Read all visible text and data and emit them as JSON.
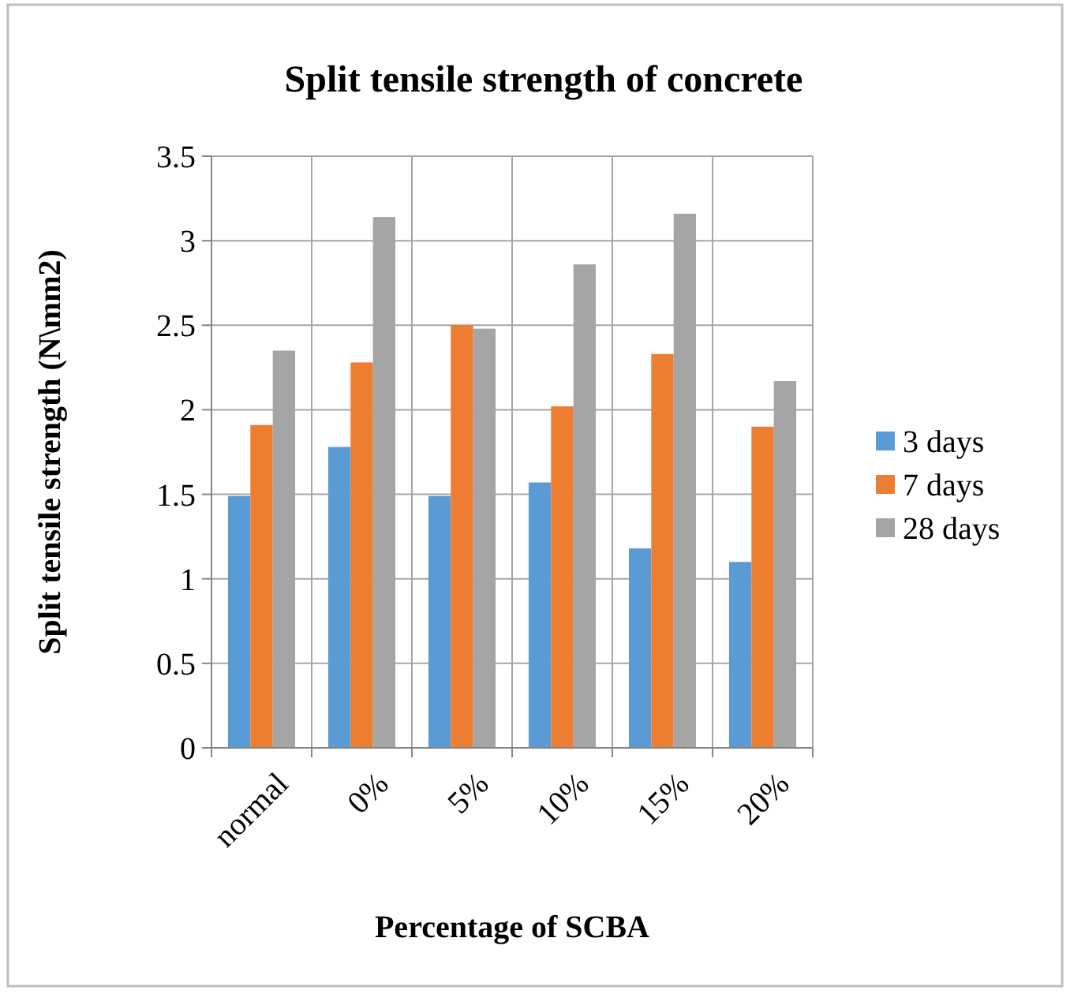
{
  "chart_data": {
    "type": "bar",
    "title": "Split tensile strength of concrete",
    "xlabel": "Percentage of SCBA",
    "ylabel": "Split tensile strength (N\\mm2)",
    "categories": [
      "normal",
      "0%",
      "5%",
      "10%",
      "15%",
      "20%"
    ],
    "series": [
      {
        "name": "3 days",
        "color": "#5b9bd5",
        "values": [
          1.49,
          1.78,
          1.49,
          1.57,
          1.18,
          1.1
        ]
      },
      {
        "name": "7 days",
        "color": "#ed7d31",
        "values": [
          1.91,
          2.28,
          2.5,
          2.02,
          2.33,
          1.9
        ]
      },
      {
        "name": "28 days",
        "color": "#a5a5a5",
        "values": [
          2.35,
          3.14,
          2.48,
          2.86,
          3.16,
          2.17
        ]
      }
    ],
    "ylim": [
      0,
      3.5
    ],
    "yticks": [
      0,
      0.5,
      1,
      1.5,
      2,
      2.5,
      3,
      3.5
    ],
    "grid": true,
    "legend": "right"
  }
}
